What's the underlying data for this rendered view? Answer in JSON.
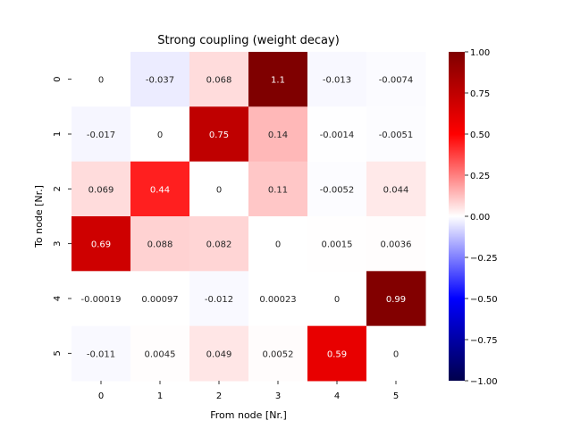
{
  "chart_data": {
    "type": "heatmap",
    "title": "Strong coupling (weight decay)",
    "xlabel": "From node [Nr.]",
    "ylabel": "To node [Nr.]",
    "x_categories": [
      "0",
      "1",
      "2",
      "3",
      "4",
      "5"
    ],
    "y_categories": [
      "0",
      "1",
      "2",
      "3",
      "4",
      "5"
    ],
    "values": [
      [
        0,
        -0.037,
        0.068,
        1.1,
        -0.013,
        -0.0074
      ],
      [
        -0.017,
        0,
        0.75,
        0.14,
        -0.0014,
        -0.0051
      ],
      [
        0.069,
        0.44,
        0,
        0.11,
        -0.0052,
        0.044
      ],
      [
        0.69,
        0.088,
        0.082,
        0,
        0.0015,
        0.0036
      ],
      [
        -0.00019,
        0.00097,
        -0.012,
        0.00023,
        0,
        0.99
      ],
      [
        -0.011,
        0.0045,
        0.049,
        0.0052,
        0.59,
        0
      ]
    ],
    "annotations": [
      [
        "0",
        "-0.037",
        "0.068",
        "1.1",
        "-0.013",
        "-0.0074"
      ],
      [
        "-0.017",
        "0",
        "0.75",
        "0.14",
        "-0.0014",
        "-0.0051"
      ],
      [
        "0.069",
        "0.44",
        "0",
        "0.11",
        "-0.0052",
        "0.044"
      ],
      [
        "0.69",
        "0.088",
        "0.082",
        "0",
        "0.0015",
        "0.0036"
      ],
      [
        "-0.00019",
        "0.00097",
        "-0.012",
        "0.00023",
        "0",
        "0.99"
      ],
      [
        "-0.011",
        "0.0045",
        "0.049",
        "0.0052",
        "0.59",
        "0"
      ]
    ],
    "colormap": "seismic",
    "colorbar": {
      "range": [
        -1.0,
        1.0
      ],
      "ticks": [
        "1.00",
        "0.75",
        "0.50",
        "0.25",
        "0.00",
        "−0.25",
        "−0.50",
        "−0.75",
        "−1.00"
      ],
      "tick_values": [
        1.0,
        0.75,
        0.5,
        0.25,
        0.0,
        -0.25,
        -0.5,
        -0.75,
        -1.0
      ]
    },
    "colors": {
      "low": "#00004c",
      "mid": "#ffffff",
      "high": "#7f0000"
    }
  }
}
